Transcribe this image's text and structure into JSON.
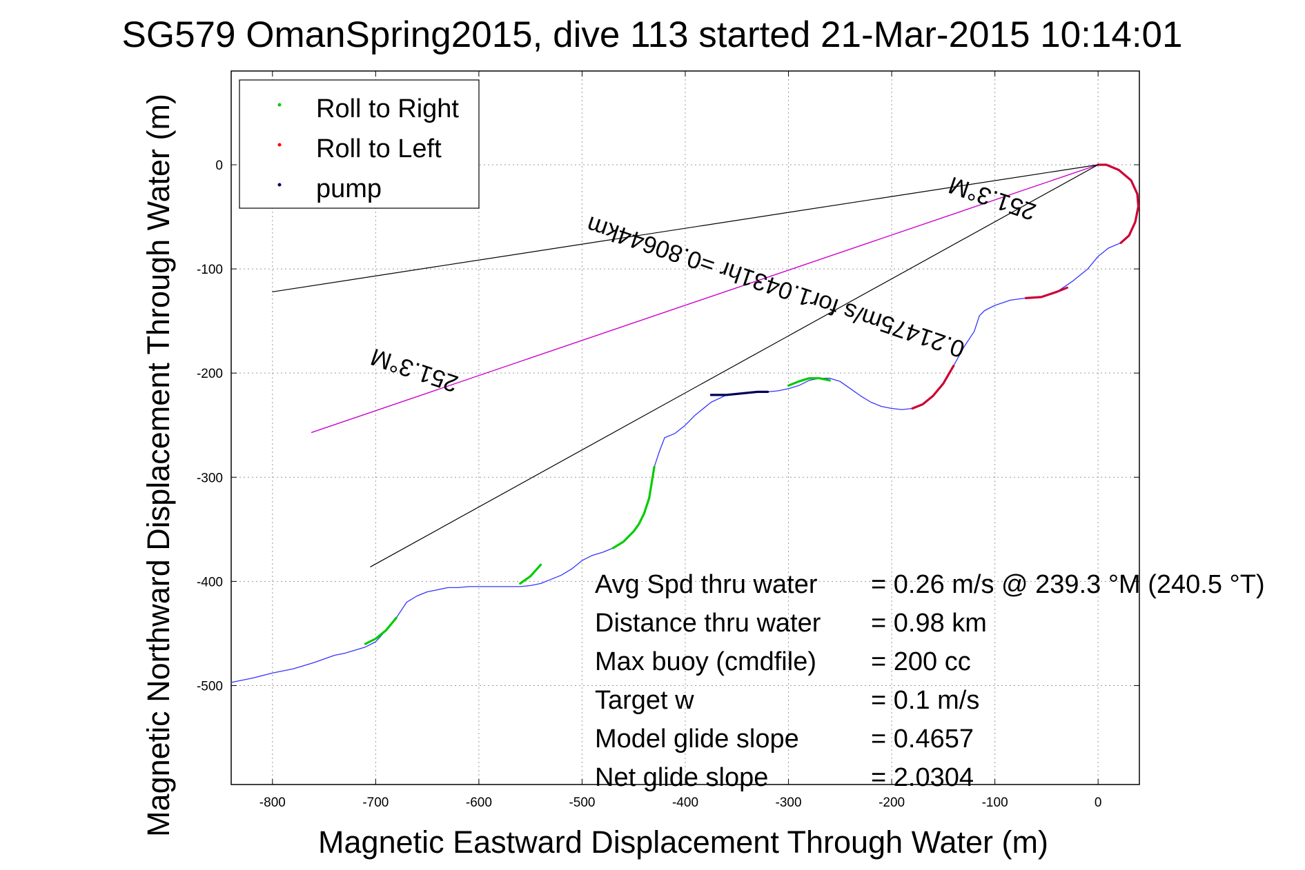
{
  "chart_data": {
    "type": "line",
    "title": "SG579 OmanSpring2015, dive 113 started 21-Mar-2015 10:14:01",
    "xlabel": "Magnetic Eastward Displacement Through Water (m)",
    "ylabel": "Magnetic Northward Displacement Through Water (m)",
    "xlim": [
      -840,
      40
    ],
    "ylim": [
      -595,
      90
    ],
    "xticks": [
      -800,
      -700,
      -600,
      -500,
      -400,
      -300,
      -200,
      -100,
      0
    ],
    "yticks": [
      0,
      -100,
      -200,
      -300,
      -400,
      -500
    ],
    "grid": true,
    "legend_position": "top-left",
    "legend": [
      {
        "label": "Roll to Right",
        "color": "#00cc00"
      },
      {
        "label": "Roll to Left",
        "color": "#ff0000"
      },
      {
        "label": "pump",
        "color": "#000066"
      }
    ],
    "colors": {
      "track": "#3333ff",
      "roll_right": "#00cc00",
      "roll_left": "#cc0033",
      "pump": "#000055",
      "heading_line": "#cc00cc",
      "cone_lines": "#000000",
      "grid": "#999999"
    },
    "series": [
      {
        "name": "track",
        "x": [
          0,
          8,
          20,
          32,
          38,
          39,
          36,
          30,
          22,
          10,
          0,
          -10,
          -25,
          -40,
          -55,
          -70,
          -85,
          -100,
          -110,
          -115,
          -120,
          -130,
          -140,
          -150,
          -160,
          -170,
          -180,
          -190,
          -200,
          -210,
          -220,
          -230,
          -240,
          -250,
          -260,
          -270,
          -280,
          -290,
          -300,
          -310,
          -320,
          -330,
          -340,
          -350,
          -360,
          -375,
          -390,
          -400,
          -410,
          -420,
          -425,
          -430,
          -432,
          -435,
          -440,
          -445,
          -450,
          -460,
          -470,
          -480,
          -490,
          -500,
          -510,
          -520,
          -530,
          -540,
          -550,
          -560,
          -570,
          -580,
          -590,
          -600,
          -610,
          -620,
          -630,
          -640,
          -650,
          -660,
          -670,
          -680,
          -690,
          -700,
          -710,
          -720,
          -730,
          -740,
          -760,
          -780,
          -800,
          -820,
          -840
        ],
        "y": [
          0,
          0,
          -5,
          -15,
          -28,
          -40,
          -55,
          -68,
          -75,
          -80,
          -88,
          -100,
          -112,
          -122,
          -127,
          -128,
          -130,
          -135,
          -140,
          -145,
          -160,
          -175,
          -193,
          -210,
          -222,
          -230,
          -234,
          -235,
          -234,
          -232,
          -228,
          -222,
          -215,
          -208,
          -205,
          -205,
          -207,
          -212,
          -215,
          -217,
          -218,
          -218,
          -219,
          -220,
          -221,
          -228,
          -240,
          -250,
          -258,
          -262,
          -275,
          -290,
          -300,
          -320,
          -335,
          -345,
          -352,
          -362,
          -368,
          -372,
          -375,
          -380,
          -388,
          -394,
          -398,
          -402,
          -404,
          -405,
          -405,
          -405,
          -405,
          -405,
          -405,
          -406,
          -406,
          -408,
          -410,
          -414,
          -420,
          -435,
          -447,
          -458,
          -463,
          -466,
          -469,
          -471,
          -478,
          -484,
          -488,
          -493,
          -497
        ]
      },
      {
        "name": "roll_right_1",
        "x": [
          -300,
          -290,
          -280,
          -270,
          -260
        ],
        "y": [
          -212,
          -208,
          -205,
          -205,
          -207
        ]
      },
      {
        "name": "roll_right_2",
        "x": [
          -430,
          -435,
          -440,
          -445,
          -450,
          -460,
          -470
        ],
        "y": [
          -290,
          -320,
          -335,
          -345,
          -352,
          -362,
          -368
        ]
      },
      {
        "name": "roll_right_3",
        "x": [
          -540,
          -550,
          -560
        ],
        "y": [
          -384,
          -395,
          -402
        ]
      },
      {
        "name": "roll_right_4",
        "x": [
          -680,
          -690,
          -700,
          -710
        ],
        "y": [
          -435,
          -447,
          -455,
          -460
        ]
      },
      {
        "name": "roll_left_1",
        "x": [
          0,
          8,
          20,
          32,
          38,
          39,
          36,
          30,
          22
        ],
        "y": [
          0,
          0,
          -5,
          -15,
          -28,
          -40,
          -55,
          -68,
          -75
        ]
      },
      {
        "name": "roll_left_2",
        "x": [
          -30,
          -40,
          -55,
          -70
        ],
        "y": [
          -118,
          -122,
          -127,
          -128
        ]
      },
      {
        "name": "roll_left_3",
        "x": [
          -140,
          -150,
          -160,
          -170,
          -180
        ],
        "y": [
          -193,
          -210,
          -222,
          -230,
          -234
        ]
      },
      {
        "name": "pump_1",
        "x": [
          -320,
          -330,
          -340,
          -350,
          -360,
          -375
        ],
        "y": [
          -218,
          -218,
          -219,
          -220,
          -221,
          -221
        ]
      },
      {
        "name": "heading_line",
        "x": [
          0,
          -762
        ],
        "y": [
          0,
          -257
        ]
      },
      {
        "name": "cone_line_upper",
        "x": [
          0,
          -800
        ],
        "y": [
          0,
          -122
        ]
      },
      {
        "name": "cone_line_lower",
        "x": [
          0,
          -705
        ],
        "y": [
          0,
          -386
        ]
      }
    ],
    "annotations": [
      {
        "text": "251.3°M",
        "x": -660,
        "y": -190,
        "rotation": 198.6
      },
      {
        "text": "0.21475m/s for1.0431hr =0.80644km",
        "x": -310,
        "y": -110,
        "rotation": 198.6
      },
      {
        "text": "251.3°M",
        "x": -100,
        "y": -25,
        "rotation": 198.6
      }
    ],
    "stats": [
      {
        "label": "Avg Spd thru water",
        "value": "=  0.26 m/s @ 239.3 °M (240.5 °T)"
      },
      {
        "label": "Distance thru water",
        "value": "=  0.98 km"
      },
      {
        "label": "Max buoy (cmdfile)",
        "value": "= 200 cc"
      },
      {
        "label": "Target w",
        "value": "= 0.1 m/s"
      },
      {
        "label": "Model glide slope",
        "value": "= 0.4657"
      },
      {
        "label": "Net glide slope",
        "value": "= 2.0304"
      }
    ]
  }
}
